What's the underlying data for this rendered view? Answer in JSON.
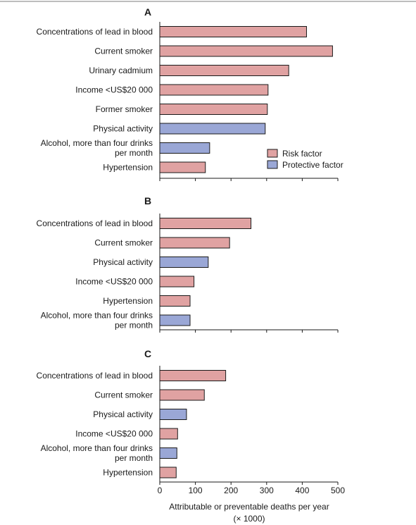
{
  "colors": {
    "risk": "#e0a2a2",
    "protective": "#9aa7d6",
    "stroke": "#1a1a1a"
  },
  "legend": {
    "risk_label": "Risk factor",
    "protective_label": "Protective factor"
  },
  "xaxis": {
    "ticks": [
      "0",
      "100",
      "200",
      "300",
      "400",
      "500"
    ],
    "label_line1": "Attributable or preventable deaths per year",
    "label_line2": "(× 1000)"
  },
  "chart_data": [
    {
      "type": "bar",
      "orientation": "horizontal",
      "title": "A",
      "xlabel": "Attributable or preventable deaths per year (× 1000)",
      "xlim": [
        0,
        500
      ],
      "categories": [
        "Concentrations of lead in blood",
        "Current smoker",
        "Urinary cadmium",
        "Income <US$20 000",
        "Former smoker",
        "Physical activity",
        "Alcohol, more than four drinks per month",
        "Hypertension"
      ],
      "values": [
        412,
        485,
        362,
        304,
        302,
        296,
        140,
        128
      ],
      "factor": [
        "risk",
        "risk",
        "risk",
        "risk",
        "risk",
        "protective",
        "protective",
        "risk"
      ],
      "legend": [
        "Risk factor",
        "Protective factor"
      ]
    },
    {
      "type": "bar",
      "orientation": "horizontal",
      "title": "B",
      "xlabel": "Attributable or preventable deaths per year (× 1000)",
      "xlim": [
        0,
        500
      ],
      "categories": [
        "Concentrations of lead in blood",
        "Current smoker",
        "Physical activity",
        "Income <US$20 000",
        "Hypertension",
        "Alcohol, more than four drinks per month"
      ],
      "values": [
        256,
        196,
        136,
        96,
        85,
        85
      ],
      "factor": [
        "risk",
        "risk",
        "protective",
        "risk",
        "risk",
        "protective"
      ]
    },
    {
      "type": "bar",
      "orientation": "horizontal",
      "title": "C",
      "xlabel": "Attributable or preventable deaths per year (× 1000)",
      "xlim": [
        0,
        500
      ],
      "categories": [
        "Concentrations of lead in blood",
        "Current smoker",
        "Physical activity",
        "Income <US$20 000",
        "Alcohol, more than four drinks per month",
        "Hypertension"
      ],
      "values": [
        185,
        125,
        75,
        50,
        48,
        46
      ],
      "factor": [
        "risk",
        "risk",
        "protective",
        "risk",
        "protective",
        "risk"
      ]
    }
  ]
}
